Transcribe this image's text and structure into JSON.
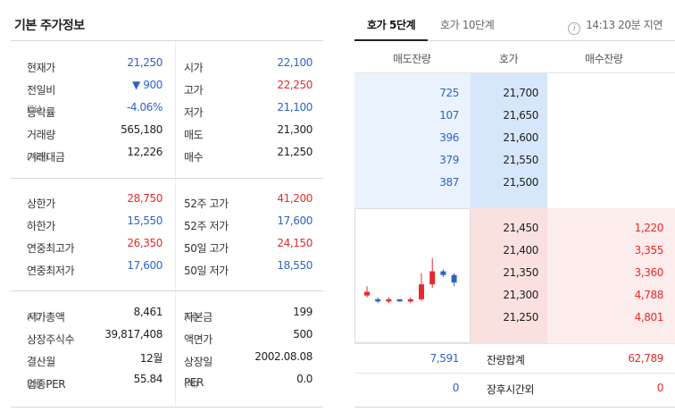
{
  "basic_info": {
    "title": "기본 주가정보",
    "group1": [
      {
        "k1": "현재가",
        "u1": "",
        "v1": "21,250",
        "c1": "blue",
        "k2": "시가",
        "u2": "",
        "v2": "22,100",
        "c2": "blue"
      },
      {
        "k1": "전일비",
        "u1": "",
        "v1": "▼ 900",
        "c1": "blue",
        "k2": "고가",
        "u2": "",
        "v2": "22,250",
        "c2": "red"
      },
      {
        "k1": "등락률",
        "u1": "(%)",
        "v1": "-4.06%",
        "c1": "blue",
        "k2": "저가",
        "u2": "",
        "v2": "21,100",
        "c2": "blue"
      },
      {
        "k1": "거래량",
        "u1": "",
        "v1": "565,180",
        "c1": "dark",
        "k2": "매도",
        "u2": "",
        "v2": "21,300",
        "c2": "dark"
      },
      {
        "k1": "거래대금",
        "u1": "(백만)",
        "v1": "12,226",
        "c1": "dark",
        "k2": "매수",
        "u2": "",
        "v2": "21,250",
        "c2": "dark"
      }
    ],
    "group2": [
      {
        "k1": "상한가",
        "u1": "",
        "v1": "28,750",
        "c1": "red",
        "k2": "52주 고가",
        "u2": "",
        "v2": "41,200",
        "c2": "red"
      },
      {
        "k1": "하한가",
        "u1": "",
        "v1": "15,550",
        "c1": "blue",
        "k2": "52주 저가",
        "u2": "",
        "v2": "17,600",
        "c2": "blue"
      },
      {
        "k1": "연중최고가",
        "u1": "",
        "v1": "26,350",
        "c1": "red",
        "k2": "50일 고가",
        "u2": "",
        "v2": "24,150",
        "c2": "red"
      },
      {
        "k1": "연중최저가",
        "u1": "",
        "v1": "17,600",
        "c1": "blue",
        "k2": "50일 저가",
        "u2": "",
        "v2": "18,550",
        "c2": "blue"
      }
    ],
    "group3": [
      {
        "k1": "시가총액",
        "u1": "(억)",
        "v1": "8,461",
        "c1": "dark",
        "k2": "자본금",
        "u2": "(억)",
        "v2": "199",
        "c2": "dark"
      },
      {
        "k1": "상장주식수",
        "u1": "",
        "v1": "39,817,408",
        "c1": "dark",
        "k2": "액면가",
        "u2": "",
        "v2": "500",
        "c2": "dark"
      },
      {
        "k1": "결산월",
        "u1": "",
        "v1": "12월",
        "c1": "dark",
        "k2": "상장일",
        "u2": "",
        "v2": "2002.08.08",
        "c2": "dark"
      },
      {
        "k1": "업종PER",
        "u1": "(배)",
        "v1": "55.84",
        "c1": "dark",
        "k2": "PER",
        "u2": "(배)",
        "v2": "0.0",
        "c2": "dark"
      }
    ]
  },
  "orderbook": {
    "tabs": [
      {
        "label": "호가 5단계",
        "active": true
      },
      {
        "label": "호가 10단계",
        "active": false
      }
    ],
    "time_info": "14:13 20분 지연",
    "info_icon_glyph": "i",
    "headers": {
      "sell_qty": "매도잔량",
      "price": "호가",
      "buy_qty": "매수잔량"
    },
    "asks": [
      {
        "qty": "725",
        "price": "21,700"
      },
      {
        "qty": "107",
        "price": "21,650"
      },
      {
        "qty": "396",
        "price": "21,600"
      },
      {
        "qty": "379",
        "price": "21,550"
      },
      {
        "qty": "387",
        "price": "21,500"
      }
    ],
    "bids": [
      {
        "price": "21,450",
        "qty": "1,220"
      },
      {
        "price": "21,400",
        "qty": "3,355"
      },
      {
        "price": "21,350",
        "qty": "3,360"
      },
      {
        "price": "21,300",
        "qty": "4,788"
      },
      {
        "price": "21,250",
        "qty": "4,801"
      }
    ],
    "totals": {
      "sell": "7,591",
      "label": "잔량합계",
      "buy": "62,789"
    },
    "after_hours": {
      "sell": "0",
      "label": "장후시간외",
      "buy": "0"
    }
  },
  "mini_chart": {
    "candles": [
      {
        "o": 21100,
        "c": 21200,
        "h": 21350,
        "l": 21050
      },
      {
        "o": 21000,
        "c": 20950,
        "h": 21050,
        "l": 20900
      },
      {
        "o": 20950,
        "c": 21000,
        "h": 21050,
        "l": 20900
      },
      {
        "o": 21000,
        "c": 20950,
        "h": 21000,
        "l": 20950
      },
      {
        "o": 20950,
        "c": 21000,
        "h": 21050,
        "l": 20900
      },
      {
        "o": 21000,
        "c": 21400,
        "h": 21700,
        "l": 20950
      },
      {
        "o": 21400,
        "c": 21750,
        "h": 22100,
        "l": 21300
      },
      {
        "o": 21750,
        "c": 21650,
        "h": 21800,
        "l": 21600
      },
      {
        "o": 21650,
        "c": 21450,
        "h": 21700,
        "l": 21350
      }
    ],
    "colors": {
      "up": "#e52a2a",
      "down": "#2e62c9"
    }
  },
  "colors": {
    "red": "#e52a2a",
    "blue": "#2e62c9",
    "sell_bg": "#eaf2fd",
    "buy_bg": "#fdecec"
  }
}
